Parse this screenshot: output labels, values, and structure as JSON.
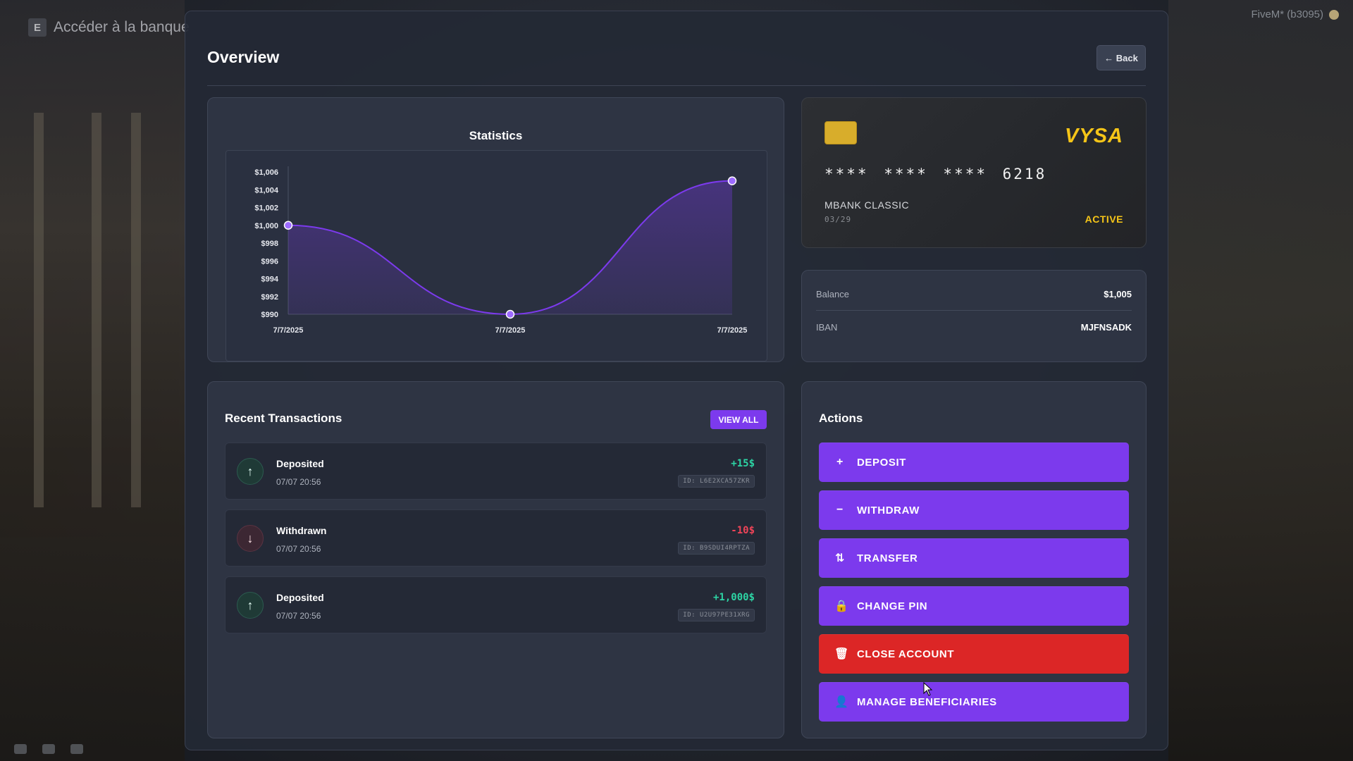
{
  "hint": {
    "key": "E",
    "text": "Accéder à la banque"
  },
  "fivem": "FiveM* (b3095)",
  "header": {
    "title": "Overview",
    "back_label": "← Back"
  },
  "statistics": {
    "title": "Statistics"
  },
  "chart_data": {
    "type": "area",
    "title": "Statistics",
    "x": [
      "7/7/2025",
      "7/7/2025",
      "7/7/2025"
    ],
    "series": [
      {
        "values": [
          1000,
          990,
          1005
        ]
      }
    ],
    "ylim": [
      990,
      1006
    ],
    "yticks": [
      "$1,006",
      "$1,004",
      "$1,002",
      "$1,000",
      "$998",
      "$996",
      "$994",
      "$992",
      "$990"
    ],
    "ytick_values": [
      1006,
      1004,
      1002,
      1000,
      998,
      996,
      994,
      992,
      990
    ],
    "color": "#7c3aed",
    "grid": false,
    "legend": "none"
  },
  "card": {
    "brand": "VYSA",
    "number": "**** **** **** 6218",
    "type": "MBANK CLASSIC",
    "expiry": "03/29",
    "status": "ACTIVE"
  },
  "account": {
    "balance_label": "Balance",
    "balance": "$1,005",
    "iban_label": "IBAN",
    "iban": "MJFNSADK"
  },
  "transactions": {
    "title": "Recent Transactions",
    "view_all": "VIEW ALL",
    "items": [
      {
        "direction": "in",
        "icon": "↑",
        "type": "Deposited",
        "date": "07/07 20:56",
        "amount": "+15$",
        "id": "ID: L6E2XCA57ZKR"
      },
      {
        "direction": "out",
        "icon": "↓",
        "type": "Withdrawn",
        "date": "07/07 20:56",
        "amount": "-10$",
        "id": "ID: B9SDUI4RPTZA"
      },
      {
        "direction": "in",
        "icon": "↑",
        "type": "Deposited",
        "date": "07/07 20:56",
        "amount": "+1,000$",
        "id": "ID: U2U97PE31XRG"
      }
    ]
  },
  "actions": {
    "title": "Actions",
    "items": [
      {
        "label": "DEPOSIT",
        "icon": "+",
        "icon_name": "plus-icon"
      },
      {
        "label": "WITHDRAW",
        "icon": "−",
        "icon_name": "minus-icon"
      },
      {
        "label": "TRANSFER",
        "icon": "⇅",
        "icon_name": "transfer-icon"
      },
      {
        "label": "CHANGE PIN",
        "icon": "🔒",
        "icon_name": "lock-icon"
      },
      {
        "label": "CLOSE ACCOUNT",
        "icon": "🗑",
        "icon_name": "trash-icon"
      },
      {
        "label": "MANAGE BENEFICIARIES",
        "icon": "👤",
        "icon_name": "user-icon"
      }
    ]
  }
}
